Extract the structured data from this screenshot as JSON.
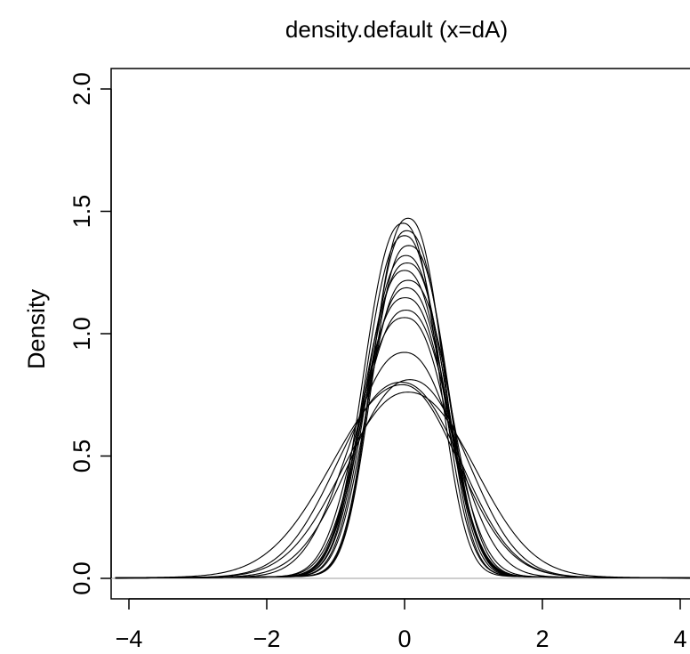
{
  "chart_data": {
    "type": "line",
    "title": "density.default (x=dA)",
    "xlabel": "",
    "ylabel": "Density",
    "xlim": [
      -4.2,
      4.2
    ],
    "ylim": [
      0,
      2.0
    ],
    "x_ticks": [
      "−4",
      "−2",
      "0",
      "2",
      "4"
    ],
    "x_tick_values": [
      -4,
      -2,
      0,
      2,
      4
    ],
    "y_ticks": [
      "0.0",
      "0.5",
      "1.0",
      "1.5",
      "2.0"
    ],
    "y_tick_values": [
      0,
      0.5,
      1.0,
      1.5,
      2.0
    ],
    "zero_line": true,
    "zero_line_color": "#bebebe",
    "line_color": "#000000",
    "grid": false,
    "series": [
      {
        "peak": 1.45,
        "center": 0.05,
        "w_left": 0.5,
        "w_right": 0.5,
        "shape": 2.4
      },
      {
        "peak": 1.43,
        "center": -0.02,
        "w_left": 0.55,
        "w_right": 0.5,
        "shape": 2.4
      },
      {
        "peak": 1.4,
        "center": 0.03,
        "w_left": 0.5,
        "w_right": 0.55,
        "shape": 2.4
      },
      {
        "peak": 1.38,
        "center": 0.0,
        "w_left": 0.55,
        "w_right": 0.52,
        "shape": 2.4
      },
      {
        "peak": 1.34,
        "center": 0.06,
        "w_left": 0.52,
        "w_right": 0.55,
        "shape": 2.5
      },
      {
        "peak": 1.3,
        "center": 0.02,
        "w_left": 0.56,
        "w_right": 0.56,
        "shape": 2.4
      },
      {
        "peak": 1.27,
        "center": 0.04,
        "w_left": 0.57,
        "w_right": 0.55,
        "shape": 2.5
      },
      {
        "peak": 1.24,
        "center": 0.0,
        "w_left": 0.58,
        "w_right": 0.58,
        "shape": 2.4
      },
      {
        "peak": 1.2,
        "center": 0.05,
        "w_left": 0.57,
        "w_right": 0.6,
        "shape": 2.5
      },
      {
        "peak": 1.17,
        "center": 0.03,
        "w_left": 0.6,
        "w_right": 0.58,
        "shape": 2.4
      },
      {
        "peak": 1.13,
        "center": 0.01,
        "w_left": 0.62,
        "w_right": 0.6,
        "shape": 2.5
      },
      {
        "peak": 1.08,
        "center": 0.02,
        "w_left": 0.63,
        "w_right": 0.63,
        "shape": 2.4
      },
      {
        "peak": 1.05,
        "center": 0.0,
        "w_left": 0.66,
        "w_right": 0.62,
        "shape": 2.5
      },
      {
        "peak": 0.91,
        "center": 0.0,
        "w_left": 0.78,
        "w_right": 0.72,
        "shape": 2.3
      },
      {
        "peak": 0.8,
        "center": 0.08,
        "w_left": 0.85,
        "w_right": 0.82,
        "shape": 2.2
      },
      {
        "peak": 0.79,
        "center": -0.05,
        "w_left": 0.9,
        "w_right": 0.85,
        "shape": 2.2
      },
      {
        "peak": 0.78,
        "center": -0.03,
        "w_left": 1.0,
        "w_right": 0.8,
        "shape": 2.1
      },
      {
        "peak": 0.75,
        "center": 0.05,
        "w_left": 0.92,
        "w_right": 0.95,
        "shape": 2.2
      }
    ]
  }
}
